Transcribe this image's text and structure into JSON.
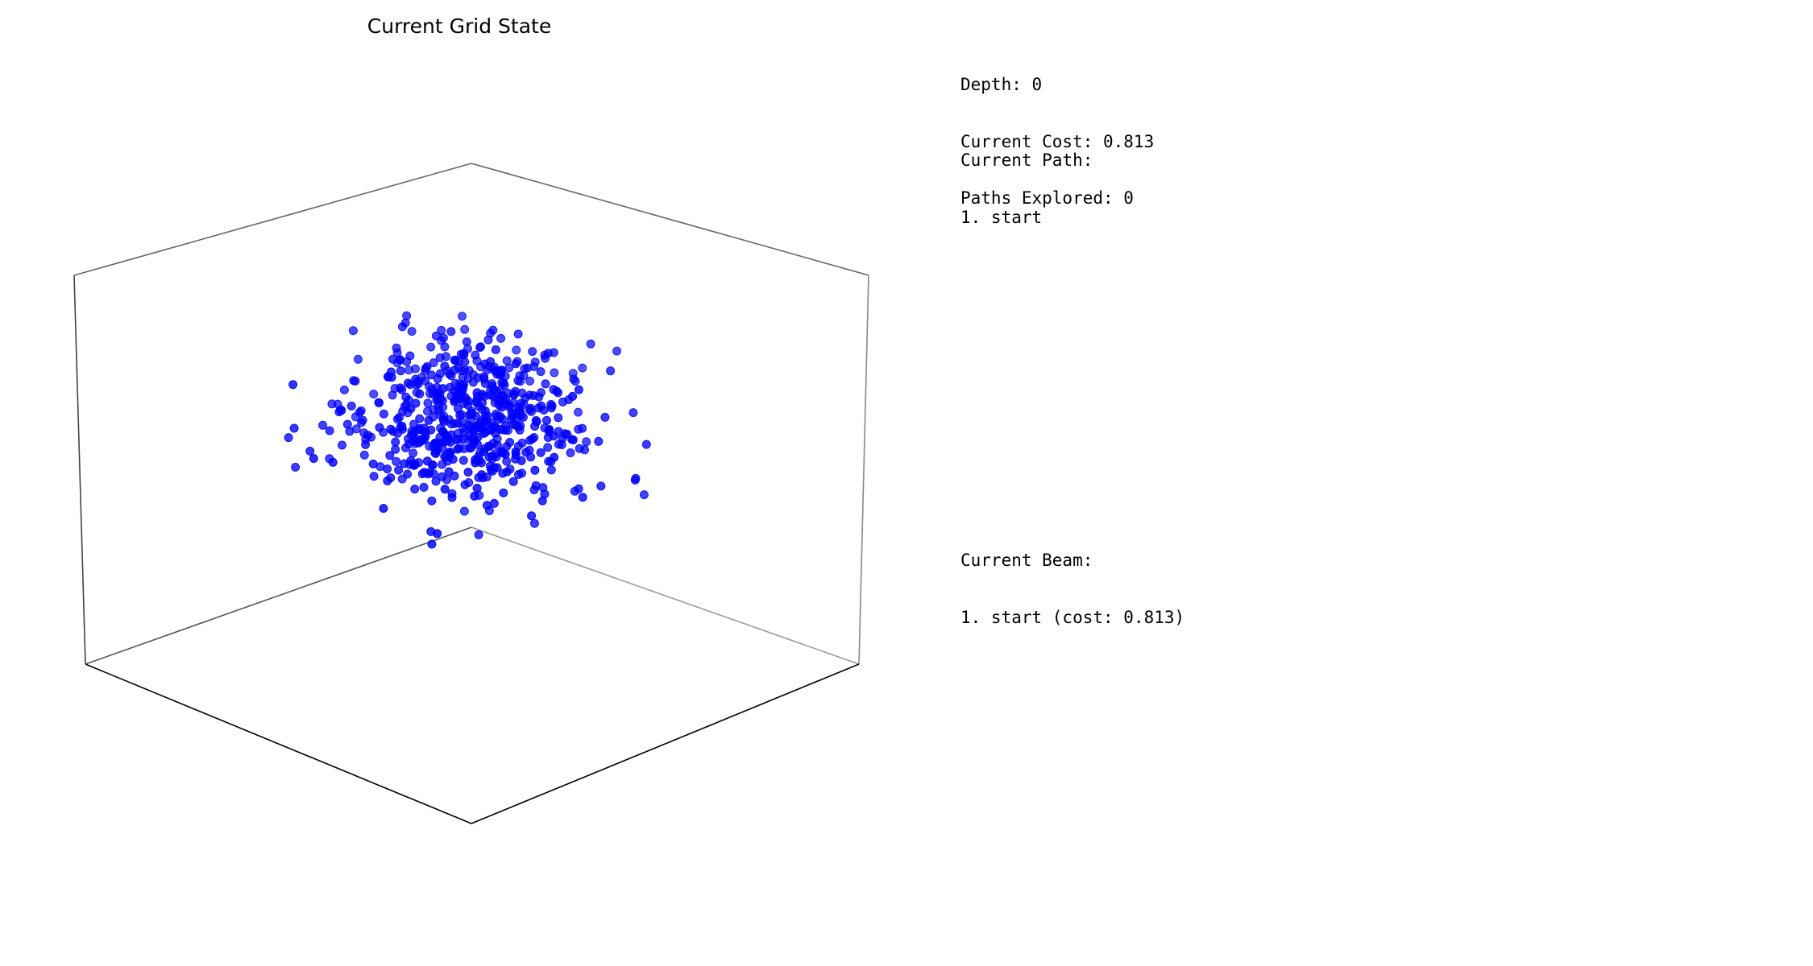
{
  "chart_data": {
    "type": "scatter",
    "subtype": "3d-scatter",
    "title": "Current Grid State",
    "marker_color": "#0000ff",
    "axes_visible": false,
    "grid": false,
    "point_count": 600
  },
  "info": {
    "depth_text": "Depth: 0",
    "cost_text": "Current Cost: 0.813",
    "paths_text": "Paths Explored: 0",
    "path_heading": "Current Path:",
    "path_items": [
      "1. start"
    ],
    "beam_heading": "Current Beam:",
    "beam_items": [
      "1. start (cost: 0.813)"
    ]
  }
}
